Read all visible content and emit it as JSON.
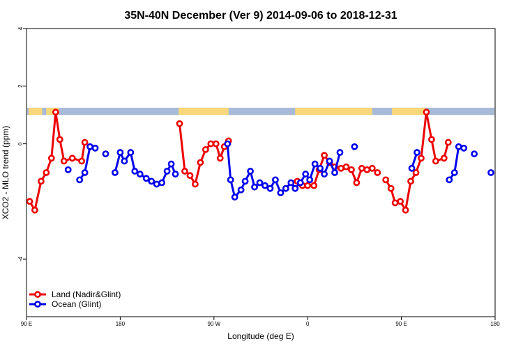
{
  "chart_data": {
    "type": "line",
    "title": "35N-40N December (Ver 9)   2014-09-06 to 2018-12-31",
    "xlabel": "Longitude (deg E)",
    "ylabel": "XCO2 - MLO trend (ppm)",
    "xlim": [
      90,
      540
    ],
    "ylim": [
      -6.0,
      4.0
    ],
    "grid": false,
    "legend_position": "bottom-left",
    "x_ticks": [
      {
        "value": 90,
        "label": "90 E"
      },
      {
        "value": 180,
        "label": "180"
      },
      {
        "value": 270,
        "label": "90 W"
      },
      {
        "value": 360,
        "label": "0"
      },
      {
        "value": 450,
        "label": "90 E"
      },
      {
        "value": 540,
        "label": "180"
      }
    ],
    "y_ticks": [
      {
        "value": 4,
        "label": "4"
      },
      {
        "value": 2,
        "label": "2"
      },
      {
        "value": 0,
        "label": "0"
      },
      {
        "value": -4,
        "label": "-4"
      }
    ],
    "land_mask": {
      "y_range": [
        1.0,
        1.25
      ],
      "ocean_color": "#a7bbd9",
      "land_color": "#f9d77a",
      "land_segments": [
        [
          92,
          105
        ],
        [
          109,
          121
        ],
        [
          236,
          284
        ],
        [
          348,
          422
        ],
        [
          441,
          473
        ]
      ]
    },
    "series": [
      {
        "name": "Land (Nadir&Glint)",
        "color": "#ee0000",
        "segments": [
          [
            [
              93,
              -2.0
            ],
            [
              98,
              -2.3
            ],
            [
              104,
              -1.3
            ],
            [
              109,
              -1.0
            ],
            [
              114,
              -0.5
            ],
            [
              118,
              1.1
            ],
            [
              122,
              0.15
            ],
            [
              126,
              -0.6
            ],
            [
              134,
              -0.5
            ],
            [
              143,
              -0.6
            ],
            [
              146,
              0.05
            ]
          ],
          [
            [
              237,
              0.7
            ],
            [
              242,
              -0.95
            ],
            [
              247,
              -1.1
            ],
            [
              252,
              -1.4
            ],
            [
              257,
              -0.65
            ],
            [
              262,
              -0.2
            ],
            [
              267,
              0.0
            ],
            [
              272,
              0.0
            ],
            [
              276,
              -0.5
            ],
            [
              280,
              -0.1
            ],
            [
              284,
              0.1
            ]
          ],
          [
            [
              350,
              -1.3
            ],
            [
              355,
              -1.45
            ],
            [
              360,
              -1.45
            ],
            [
              366,
              -1.45
            ],
            [
              371,
              -0.9
            ],
            [
              376,
              -0.4
            ],
            [
              381,
              -0.65
            ],
            [
              386,
              -0.8
            ],
            [
              392,
              -0.85
            ],
            [
              397,
              -0.8
            ],
            [
              402,
              -0.9
            ],
            [
              407,
              -1.35
            ],
            [
              412,
              -0.85
            ],
            [
              417,
              -0.9
            ],
            [
              422,
              -0.85
            ],
            [
              427,
              -1.0
            ]
          ],
          [
            [
              435,
              -1.25
            ],
            [
              440,
              -1.55
            ],
            [
              444,
              -2.05
            ],
            [
              449,
              -2.0
            ],
            [
              454,
              -2.3
            ],
            [
              459,
              -1.3
            ],
            [
              464,
              -1.0
            ],
            [
              469,
              -0.5
            ],
            [
              474,
              1.1
            ],
            [
              479,
              0.15
            ],
            [
              483,
              -0.6
            ],
            [
              491,
              -0.5
            ],
            [
              495,
              0.05
            ]
          ]
        ]
      },
      {
        "name": "Ocean (Glint)",
        "color": "#0000ee",
        "segments": [
          [
            [
              130,
              -0.9
            ]
          ],
          [
            [
              141,
              -1.25
            ],
            [
              146,
              -1.0
            ],
            [
              151,
              -0.1
            ],
            [
              156,
              -0.15
            ]
          ],
          [
            [
              166,
              -0.35
            ]
          ],
          [
            [
              175,
              -1.0
            ],
            [
              180,
              -0.3
            ],
            [
              184,
              -0.6
            ],
            [
              190,
              -0.3
            ],
            [
              194,
              -0.95
            ],
            [
              199,
              -1.05
            ],
            [
              205,
              -1.2
            ],
            [
              210,
              -1.3
            ],
            [
              215,
              -1.4
            ],
            [
              220,
              -1.35
            ],
            [
              225,
              -0.95
            ],
            [
              229,
              -0.7
            ],
            [
              233,
              -1.05
            ]
          ],
          [
            [
              283,
              0.0
            ],
            [
              286,
              -1.25
            ],
            [
              290,
              -1.85
            ],
            [
              296,
              -1.6
            ],
            [
              300,
              -1.3
            ],
            [
              305,
              -0.95
            ],
            [
              309,
              -1.5
            ],
            [
              314,
              -1.35
            ],
            [
              319,
              -1.45
            ],
            [
              324,
              -1.55
            ],
            [
              329,
              -1.25
            ],
            [
              334,
              -1.7
            ],
            [
              339,
              -1.55
            ],
            [
              344,
              -1.35
            ],
            [
              348,
              -1.55
            ],
            [
              353,
              -1.35
            ],
            [
              358,
              -1.05
            ],
            [
              362,
              -1.25
            ],
            [
              367,
              -0.7
            ],
            [
              372,
              -0.85
            ],
            [
              376,
              -1.05
            ],
            [
              381,
              -0.6
            ],
            [
              386,
              -1.0
            ],
            [
              391,
              -0.3
            ]
          ],
          [
            [
              405,
              -0.1
            ]
          ],
          [
            [
              460,
              -0.85
            ],
            [
              465,
              -0.3
            ]
          ],
          [
            [
              496,
              -1.25
            ],
            [
              501,
              -1.0
            ],
            [
              505,
              -0.1
            ],
            [
              510,
              -0.15
            ]
          ],
          [
            [
              520,
              -0.35
            ]
          ],
          [
            [
              536,
              -1.0
            ]
          ]
        ]
      }
    ]
  }
}
